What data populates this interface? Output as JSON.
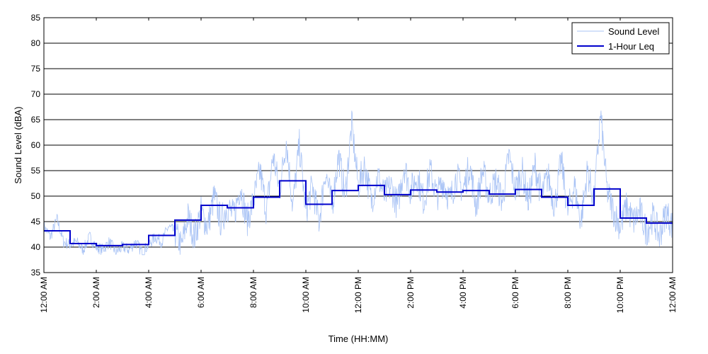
{
  "chart_data": {
    "type": "line",
    "title": "",
    "xlabel": "Time (HH:MM)",
    "ylabel": "Sound Level (dBA)",
    "ylim": [
      35,
      85
    ],
    "yticks": [
      "35",
      "40",
      "45",
      "50",
      "55",
      "60",
      "65",
      "70",
      "75",
      "80",
      "85"
    ],
    "xlim": [
      0,
      24
    ],
    "xticks": [
      {
        "hour": 0,
        "label": "12:00 AM"
      },
      {
        "hour": 2,
        "label": "2:00 AM"
      },
      {
        "hour": 4,
        "label": "4:00 AM"
      },
      {
        "hour": 6,
        "label": "6:00 AM"
      },
      {
        "hour": 8,
        "label": "8:00 AM"
      },
      {
        "hour": 10,
        "label": "10:00 AM"
      },
      {
        "hour": 12,
        "label": "12:00 PM"
      },
      {
        "hour": 14,
        "label": "2:00 PM"
      },
      {
        "hour": 16,
        "label": "4:00 PM"
      },
      {
        "hour": 18,
        "label": "6:00 PM"
      },
      {
        "hour": 20,
        "label": "8:00 PM"
      },
      {
        "hour": 22,
        "label": "10:00 PM"
      },
      {
        "hour": 24,
        "label": "12:00 AM"
      }
    ],
    "grid": "horizontal",
    "legend_position": "top-right",
    "series": [
      {
        "name": "Sound Level",
        "color": "#a9c3f5",
        "style": "thin noisy line",
        "x_hours": [
          0,
          0.25,
          0.5,
          0.75,
          1,
          1.25,
          1.5,
          1.75,
          2,
          2.25,
          2.5,
          2.75,
          3,
          3.25,
          3.5,
          3.75,
          4,
          4.25,
          4.5,
          4.75,
          5,
          5.25,
          5.5,
          5.75,
          6,
          6.25,
          6.5,
          6.75,
          7,
          7.25,
          7.5,
          7.75,
          8,
          8.25,
          8.5,
          8.75,
          9,
          9.25,
          9.5,
          9.75,
          10,
          10.25,
          10.5,
          10.75,
          11,
          11.25,
          11.5,
          11.75,
          12,
          12.25,
          12.5,
          12.75,
          13,
          13.25,
          13.5,
          13.75,
          14,
          14.25,
          14.5,
          14.75,
          15,
          15.25,
          15.5,
          15.75,
          16,
          16.25,
          16.5,
          16.75,
          17,
          17.25,
          17.5,
          17.75,
          18,
          18.25,
          18.5,
          18.75,
          19,
          19.25,
          19.5,
          19.75,
          20,
          20.25,
          20.5,
          20.75,
          21,
          21.25,
          21.5,
          21.75,
          22,
          22.25,
          22.5,
          22.75,
          23,
          23.25,
          23.5,
          23.75,
          24
        ],
        "values": [
          44,
          42,
          45.5,
          41,
          40.5,
          41,
          39.5,
          42,
          40,
          39.5,
          41,
          39,
          40,
          39.5,
          41,
          39,
          40.5,
          42,
          41,
          44,
          43,
          40,
          46,
          42,
          47,
          44,
          50,
          45,
          48,
          46,
          52,
          45,
          49,
          55,
          47,
          58,
          51,
          61,
          48,
          60,
          47,
          52,
          45,
          55,
          48,
          58,
          50,
          64,
          52,
          56,
          49,
          54,
          50,
          52,
          48,
          56,
          51,
          54,
          49,
          55,
          50,
          53,
          49,
          54,
          51,
          56,
          48,
          55,
          50,
          53,
          49,
          58,
          51,
          55,
          49,
          56,
          50,
          54,
          48,
          57,
          47,
          52,
          45,
          55,
          49,
          66,
          51,
          47,
          44,
          48,
          45,
          47,
          43,
          46,
          42,
          47,
          44
        ]
      },
      {
        "name": "1-Hour Leq",
        "color": "#0000cc",
        "style": "step",
        "hourly_values": [
          43.2,
          40.7,
          40.3,
          40.5,
          42.3,
          45.3,
          48.2,
          47.7,
          49.8,
          53.0,
          48.4,
          51.1,
          52.1,
          50.3,
          51.2,
          50.8,
          51.1,
          50.4,
          51.3,
          49.8,
          48.2,
          51.4,
          45.7,
          44.7
        ]
      }
    ]
  }
}
